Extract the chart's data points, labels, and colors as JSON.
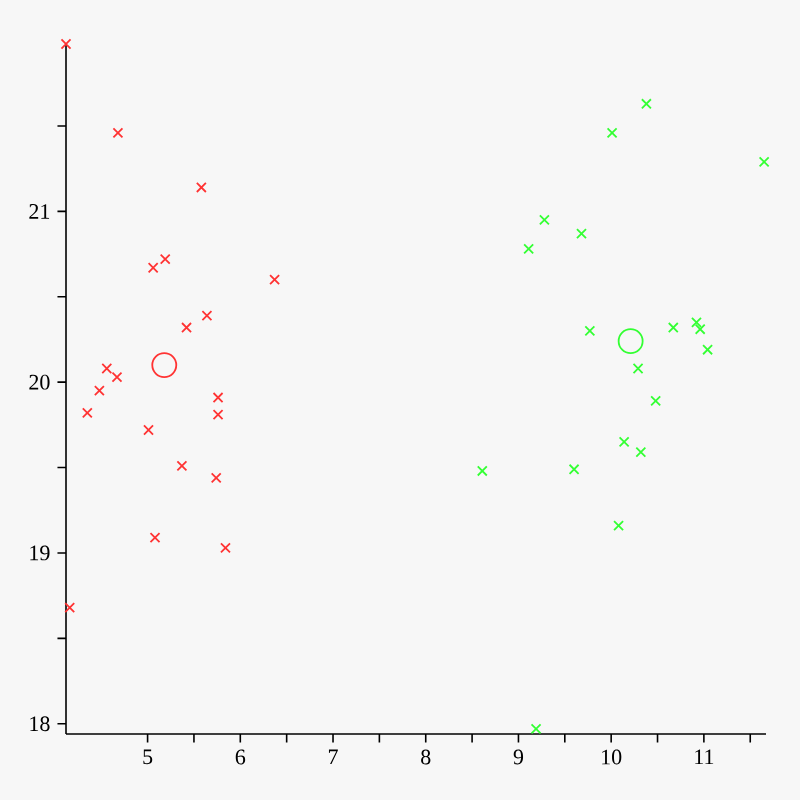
{
  "chart_data": {
    "type": "scatter",
    "xlim": [
      4.12,
      11.67
    ],
    "ylim": [
      17.94,
      21.98
    ],
    "xticks": [
      5,
      {
        "value": 5.5,
        "label": null
      },
      6,
      {
        "value": 6.5,
        "label": null
      },
      7,
      {
        "value": 7.5,
        "label": null
      },
      8,
      {
        "value": 8.5,
        "label": null
      },
      9,
      {
        "value": 9.5,
        "label": null
      },
      10,
      {
        "value": 10.5,
        "label": null
      },
      11,
      {
        "value": 11.5,
        "label": null
      }
    ],
    "yticks": [
      18,
      {
        "value": 18.5,
        "label": null
      },
      19,
      {
        "value": 19.5,
        "label": null
      },
      20,
      {
        "value": 20.5,
        "label": null
      },
      21,
      {
        "value": 21.5,
        "label": null
      }
    ],
    "series": [
      {
        "color": "#ff3333",
        "marker": "cross",
        "x": [
          4.12,
          4.68,
          5.58,
          5.06,
          5.19,
          6.37,
          5.64,
          5.42,
          4.56,
          4.67,
          4.48,
          4.35,
          5.01,
          5.76,
          5.76,
          5.37,
          5.74,
          5.08,
          5.84,
          4.16
        ],
        "values": [
          21.98,
          21.46,
          21.14,
          20.67,
          20.72,
          20.6,
          20.39,
          20.32,
          20.08,
          20.03,
          19.95,
          19.82,
          19.72,
          19.91,
          19.81,
          19.51,
          19.44,
          19.09,
          19.03,
          18.68
        ]
      },
      {
        "color": "#33ff33",
        "marker": "cross",
        "x": [
          10.38,
          10.01,
          11.65,
          9.28,
          9.68,
          9.11,
          9.77,
          10.67,
          10.92,
          10.96,
          11.04,
          10.29,
          10.48,
          10.14,
          10.32,
          8.61,
          9.6,
          10.08,
          9.19
        ],
        "values": [
          21.63,
          21.46,
          21.29,
          20.95,
          20.87,
          20.78,
          20.3,
          20.32,
          20.35,
          20.31,
          20.19,
          20.08,
          19.89,
          19.65,
          19.59,
          19.48,
          19.49,
          19.16,
          17.97
        ]
      },
      {
        "color": "#ff3333",
        "marker": "circle",
        "x": [
          5.18
        ],
        "values": [
          20.1
        ]
      },
      {
        "color": "#33ff33",
        "marker": "circle",
        "x": [
          10.21
        ],
        "values": [
          20.24
        ]
      }
    ]
  }
}
